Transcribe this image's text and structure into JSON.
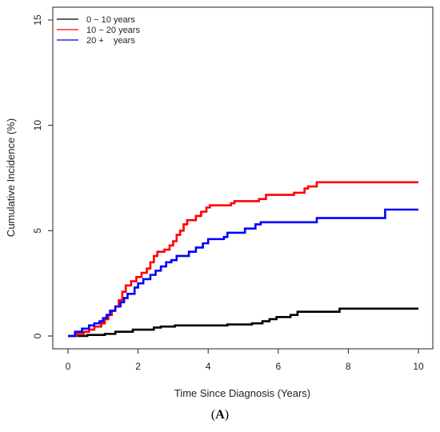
{
  "chart_data": {
    "type": "line",
    "step": true,
    "title": "",
    "xlabel": "Time Since Diagnosis (Years)",
    "ylabel": "Cumulative Incidence (%)",
    "xlim": [
      0,
      10
    ],
    "ylim": [
      0,
      15
    ],
    "x_ticks": [
      0,
      2,
      4,
      6,
      8,
      10
    ],
    "y_ticks": [
      0,
      5,
      10,
      15
    ],
    "grid": false,
    "legend_position": "top-left",
    "series": [
      {
        "name": "0 − 10 years",
        "color": "#000000",
        "points": [
          [
            0,
            0
          ],
          [
            0.5,
            0
          ],
          [
            0.55,
            0.05
          ],
          [
            1.0,
            0.05
          ],
          [
            1.05,
            0.1
          ],
          [
            1.3,
            0.1
          ],
          [
            1.35,
            0.2
          ],
          [
            1.8,
            0.2
          ],
          [
            1.85,
            0.3
          ],
          [
            2.4,
            0.3
          ],
          [
            2.45,
            0.4
          ],
          [
            2.6,
            0.4
          ],
          [
            2.65,
            0.45
          ],
          [
            3.0,
            0.45
          ],
          [
            3.05,
            0.5
          ],
          [
            4.5,
            0.5
          ],
          [
            4.55,
            0.55
          ],
          [
            5.2,
            0.55
          ],
          [
            5.25,
            0.6
          ],
          [
            5.5,
            0.6
          ],
          [
            5.55,
            0.7
          ],
          [
            5.7,
            0.7
          ],
          [
            5.75,
            0.8
          ],
          [
            5.9,
            0.8
          ],
          [
            5.95,
            0.9
          ],
          [
            6.3,
            0.9
          ],
          [
            6.35,
            1.0
          ],
          [
            6.5,
            1.0
          ],
          [
            6.55,
            1.15
          ],
          [
            7.7,
            1.15
          ],
          [
            7.75,
            1.3
          ],
          [
            10,
            1.3
          ]
        ]
      },
      {
        "name": "10 − 20 years",
        "color": "#ff0000",
        "points": [
          [
            0,
            0
          ],
          [
            0.2,
            0
          ],
          [
            0.25,
            0.1
          ],
          [
            0.4,
            0.1
          ],
          [
            0.45,
            0.2
          ],
          [
            0.55,
            0.2
          ],
          [
            0.6,
            0.3
          ],
          [
            0.7,
            0.3
          ],
          [
            0.75,
            0.45
          ],
          [
            0.9,
            0.45
          ],
          [
            0.95,
            0.6
          ],
          [
            1.0,
            0.6
          ],
          [
            1.05,
            0.8
          ],
          [
            1.1,
            0.8
          ],
          [
            1.15,
            1.0
          ],
          [
            1.2,
            1.0
          ],
          [
            1.25,
            1.2
          ],
          [
            1.3,
            1.2
          ],
          [
            1.35,
            1.4
          ],
          [
            1.4,
            1.4
          ],
          [
            1.45,
            1.7
          ],
          [
            1.5,
            1.7
          ],
          [
            1.55,
            2.1
          ],
          [
            1.6,
            2.1
          ],
          [
            1.65,
            2.4
          ],
          [
            1.75,
            2.4
          ],
          [
            1.8,
            2.6
          ],
          [
            1.9,
            2.6
          ],
          [
            1.95,
            2.8
          ],
          [
            2.05,
            2.8
          ],
          [
            2.1,
            3.0
          ],
          [
            2.2,
            3.0
          ],
          [
            2.25,
            3.2
          ],
          [
            2.3,
            3.2
          ],
          [
            2.35,
            3.5
          ],
          [
            2.4,
            3.5
          ],
          [
            2.45,
            3.8
          ],
          [
            2.5,
            3.8
          ],
          [
            2.55,
            4.0
          ],
          [
            2.7,
            4.0
          ],
          [
            2.75,
            4.1
          ],
          [
            2.85,
            4.1
          ],
          [
            2.9,
            4.3
          ],
          [
            2.95,
            4.3
          ],
          [
            3.0,
            4.5
          ],
          [
            3.05,
            4.5
          ],
          [
            3.1,
            4.8
          ],
          [
            3.15,
            4.8
          ],
          [
            3.2,
            5.0
          ],
          [
            3.25,
            5.0
          ],
          [
            3.3,
            5.3
          ],
          [
            3.35,
            5.3
          ],
          [
            3.4,
            5.5
          ],
          [
            3.6,
            5.5
          ],
          [
            3.65,
            5.7
          ],
          [
            3.75,
            5.7
          ],
          [
            3.8,
            5.9
          ],
          [
            3.9,
            5.9
          ],
          [
            3.95,
            6.1
          ],
          [
            4.0,
            6.1
          ],
          [
            4.05,
            6.2
          ],
          [
            4.6,
            6.2
          ],
          [
            4.65,
            6.3
          ],
          [
            4.7,
            6.3
          ],
          [
            4.75,
            6.4
          ],
          [
            5.4,
            6.4
          ],
          [
            5.45,
            6.5
          ],
          [
            5.6,
            6.5
          ],
          [
            5.65,
            6.7
          ],
          [
            6.4,
            6.7
          ],
          [
            6.45,
            6.8
          ],
          [
            6.7,
            6.8
          ],
          [
            6.75,
            7.0
          ],
          [
            6.8,
            7.0
          ],
          [
            6.85,
            7.1
          ],
          [
            7.05,
            7.1
          ],
          [
            7.1,
            7.3
          ],
          [
            10,
            7.3
          ]
        ]
      },
      {
        "name": "20 +    years",
        "color": "#0000ff",
        "points": [
          [
            0,
            0
          ],
          [
            0.15,
            0
          ],
          [
            0.2,
            0.2
          ],
          [
            0.35,
            0.2
          ],
          [
            0.4,
            0.35
          ],
          [
            0.55,
            0.35
          ],
          [
            0.6,
            0.5
          ],
          [
            0.7,
            0.5
          ],
          [
            0.75,
            0.6
          ],
          [
            0.85,
            0.6
          ],
          [
            0.9,
            0.7
          ],
          [
            0.95,
            0.7
          ],
          [
            1.0,
            0.85
          ],
          [
            1.05,
            0.85
          ],
          [
            1.1,
            1.0
          ],
          [
            1.15,
            1.0
          ],
          [
            1.2,
            1.2
          ],
          [
            1.3,
            1.2
          ],
          [
            1.35,
            1.4
          ],
          [
            1.45,
            1.4
          ],
          [
            1.5,
            1.6
          ],
          [
            1.55,
            1.6
          ],
          [
            1.6,
            1.8
          ],
          [
            1.65,
            1.8
          ],
          [
            1.7,
            2.0
          ],
          [
            1.85,
            2.0
          ],
          [
            1.9,
            2.3
          ],
          [
            1.95,
            2.3
          ],
          [
            2.0,
            2.5
          ],
          [
            2.1,
            2.5
          ],
          [
            2.15,
            2.7
          ],
          [
            2.3,
            2.7
          ],
          [
            2.35,
            2.9
          ],
          [
            2.45,
            2.9
          ],
          [
            2.5,
            3.1
          ],
          [
            2.6,
            3.1
          ],
          [
            2.65,
            3.3
          ],
          [
            2.75,
            3.3
          ],
          [
            2.8,
            3.5
          ],
          [
            2.9,
            3.5
          ],
          [
            2.95,
            3.6
          ],
          [
            3.05,
            3.6
          ],
          [
            3.1,
            3.8
          ],
          [
            3.4,
            3.8
          ],
          [
            3.45,
            4.0
          ],
          [
            3.6,
            4.0
          ],
          [
            3.65,
            4.2
          ],
          [
            3.8,
            4.2
          ],
          [
            3.85,
            4.4
          ],
          [
            3.95,
            4.4
          ],
          [
            4.0,
            4.6
          ],
          [
            4.4,
            4.6
          ],
          [
            4.45,
            4.7
          ],
          [
            4.5,
            4.7
          ],
          [
            4.55,
            4.9
          ],
          [
            5.0,
            4.9
          ],
          [
            5.05,
            5.1
          ],
          [
            5.3,
            5.1
          ],
          [
            5.35,
            5.3
          ],
          [
            5.45,
            5.3
          ],
          [
            5.5,
            5.4
          ],
          [
            7.05,
            5.4
          ],
          [
            7.1,
            5.6
          ],
          [
            9.0,
            5.6
          ],
          [
            9.05,
            6.0
          ],
          [
            10,
            6.0
          ]
        ]
      }
    ]
  },
  "panel_label": "A"
}
